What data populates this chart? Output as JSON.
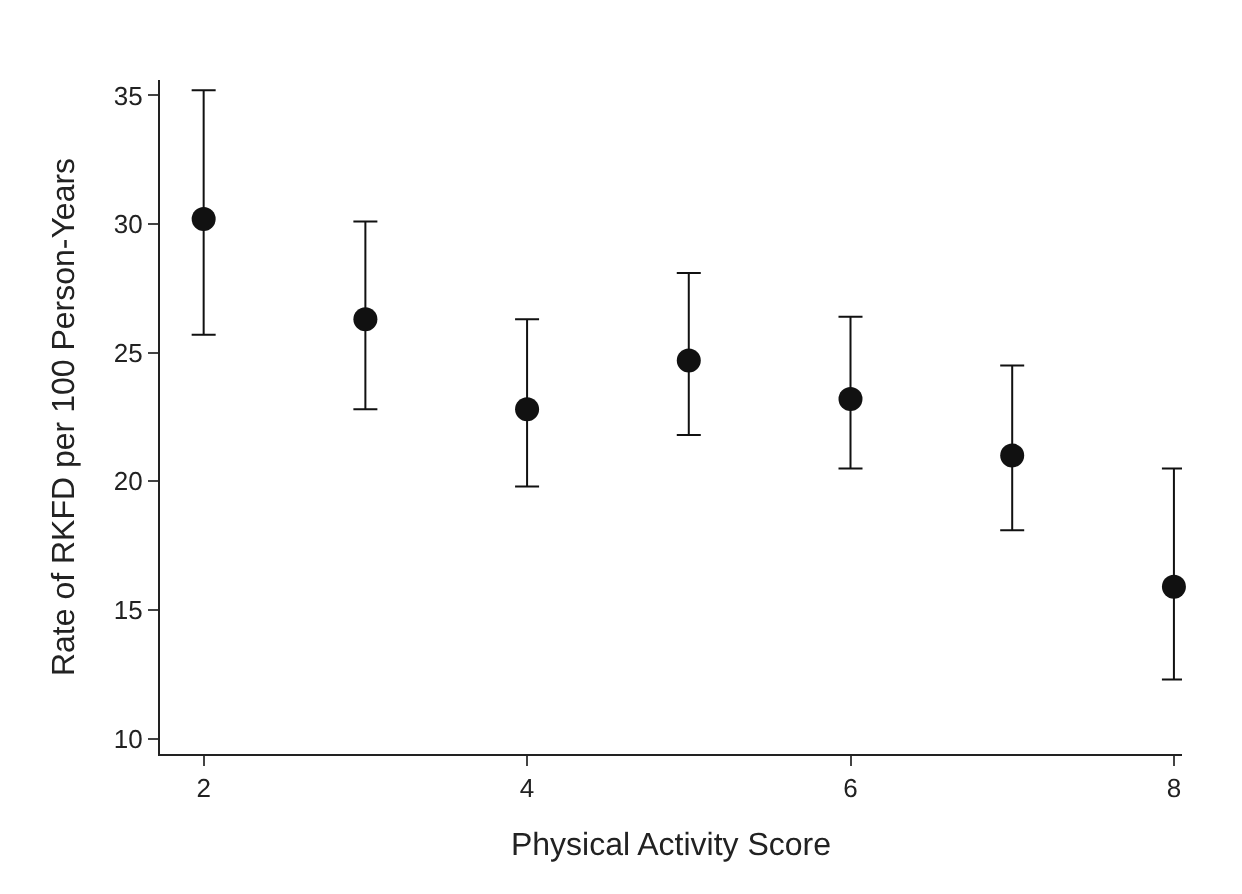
{
  "chart_data": {
    "type": "scatter",
    "xlabel": "Physical Activity Score",
    "ylabel": "Rate of RKFD per 100 Person-Years",
    "x": [
      2,
      3,
      4,
      5,
      6,
      7,
      8
    ],
    "values": [
      30.2,
      26.3,
      22.8,
      24.7,
      23.2,
      21.0,
      15.9
    ],
    "errors": [
      [
        25.7,
        35.2
      ],
      [
        22.8,
        30.1
      ],
      [
        19.8,
        26.3
      ],
      [
        21.8,
        28.1
      ],
      [
        20.5,
        26.4
      ],
      [
        18.1,
        24.5
      ],
      [
        12.3,
        20.5
      ]
    ],
    "color": "#111111",
    "marker": "circle",
    "xlim": [
      1.73,
      8.05
    ],
    "xticks": [
      2,
      4,
      6,
      8
    ],
    "ylim": [
      9.4,
      35.6
    ],
    "yticks": [
      10,
      15,
      20,
      25,
      30,
      35
    ],
    "legend": false
  }
}
